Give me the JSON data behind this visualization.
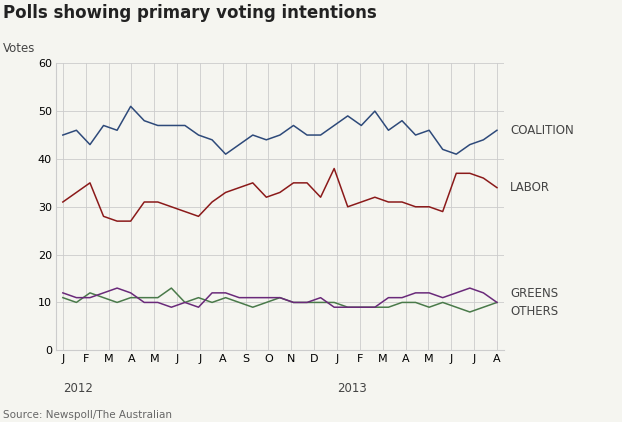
{
  "title": "Polls showing primary voting intentions",
  "ylabel": "Votes",
  "source": "Source: Newspoll/The Australian",
  "x_labels": [
    "J",
    "F",
    "M",
    "A",
    "M",
    "J",
    "J",
    "A",
    "S",
    "O",
    "N",
    "D",
    "J",
    "F",
    "M",
    "A",
    "M",
    "J",
    "J",
    "A"
  ],
  "year_labels": [
    [
      "2012",
      0
    ],
    [
      "2013",
      12
    ]
  ],
  "ylim": [
    0,
    60
  ],
  "yticks": [
    0,
    10,
    20,
    30,
    40,
    50,
    60
  ],
  "coalition": [
    45,
    46,
    43,
    47,
    46,
    51,
    48,
    47,
    47,
    47,
    45,
    44,
    41,
    43,
    45,
    44,
    45,
    47,
    45,
    45,
    47,
    49,
    47,
    50,
    46,
    48,
    45,
    46,
    42,
    41,
    43,
    44,
    46
  ],
  "labor": [
    31,
    33,
    35,
    28,
    27,
    27,
    31,
    31,
    30,
    29,
    28,
    31,
    33,
    34,
    35,
    32,
    33,
    35,
    35,
    32,
    38,
    30,
    31,
    32,
    31,
    31,
    30,
    30,
    29,
    37,
    37,
    36,
    34
  ],
  "greens": [
    11,
    10,
    12,
    11,
    10,
    11,
    11,
    11,
    13,
    10,
    11,
    10,
    11,
    10,
    9,
    10,
    11,
    10,
    10,
    10,
    10,
    9,
    9,
    9,
    9,
    10,
    10,
    9,
    10,
    9,
    8,
    9,
    10
  ],
  "others": [
    12,
    11,
    11,
    12,
    13,
    12,
    10,
    10,
    9,
    10,
    9,
    12,
    12,
    11,
    11,
    11,
    11,
    10,
    10,
    11,
    9,
    9,
    9,
    9,
    11,
    11,
    12,
    12,
    11,
    12,
    13,
    12,
    10
  ],
  "coalition_color": "#2e4a7a",
  "labor_color": "#8b1a1a",
  "greens_color": "#4a7a4a",
  "others_color": "#6a2a7a",
  "background_color": "#f5f5f0",
  "grid_color": "#cccccc",
  "title_fontsize": 12,
  "label_fontsize": 8.5,
  "annotation_fontsize": 8.5,
  "tick_fontsize": 8
}
